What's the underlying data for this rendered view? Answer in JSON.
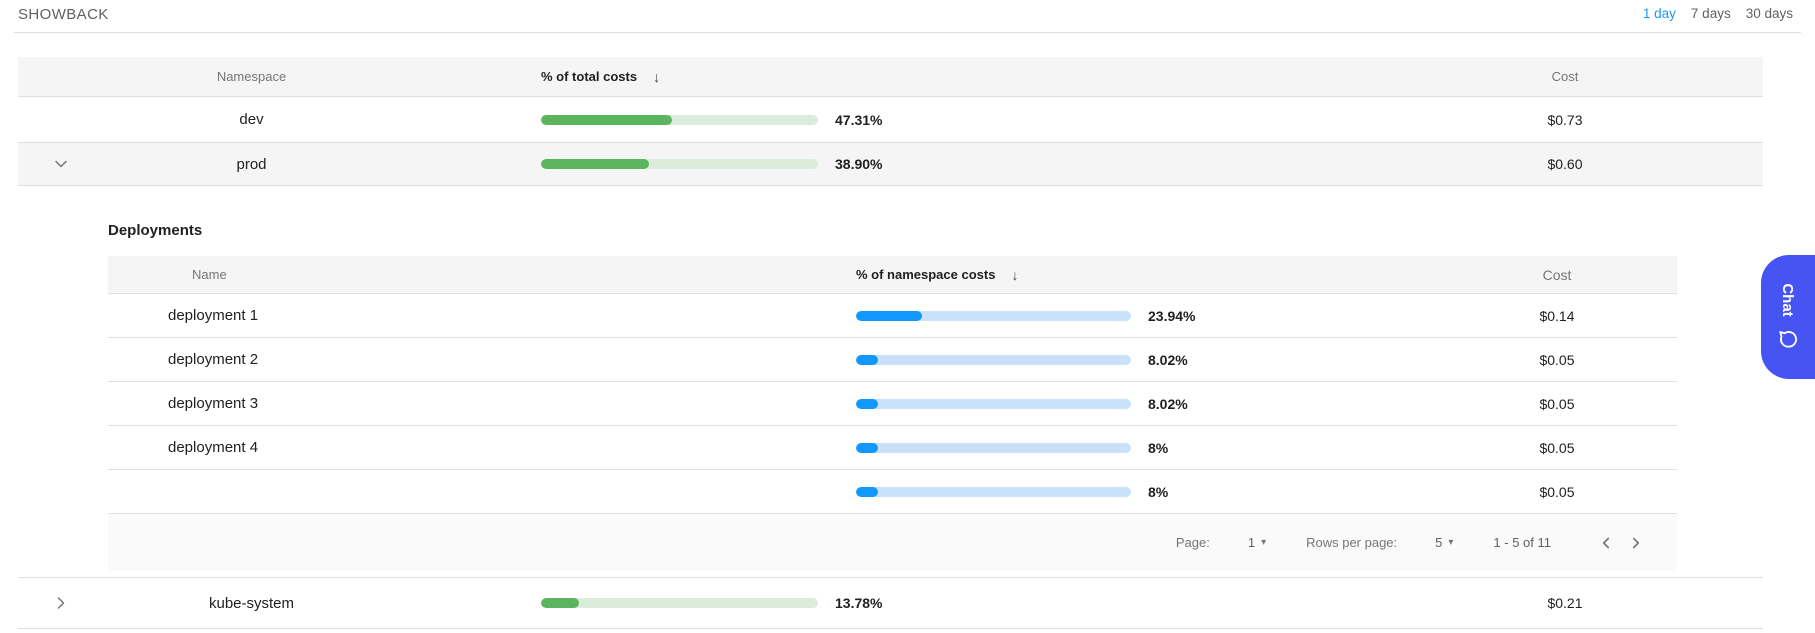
{
  "page": {
    "title": "SHOWBACK",
    "time_ranges": [
      {
        "label": "1 day",
        "selected": true
      },
      {
        "label": "7 days",
        "selected": false
      },
      {
        "label": "30 days",
        "selected": false
      }
    ]
  },
  "colors": {
    "accent_blue": "#2196f3",
    "green_bar_fill": "#5ab55e",
    "green_bar_track": "#dbecdb",
    "blue_bar_fill": "#1297fd",
    "blue_bar_track": "#c9e2f9",
    "chat_button": "#4654f3"
  },
  "main_table": {
    "headers": {
      "name": "Namespace",
      "percent": "% of total costs",
      "sort_arrow": "↓",
      "cost": "Cost"
    },
    "rows": [
      {
        "name": "dev",
        "percent": 47.31,
        "percent_label": "47.31%",
        "cost": "$0.73"
      },
      {
        "name": "prod",
        "percent": 38.9,
        "percent_label": "38.90%",
        "cost": "$0.60"
      },
      {
        "name": "kube-system",
        "percent": 13.78,
        "percent_label": "13.78%",
        "cost": "$0.21"
      }
    ]
  },
  "deployments_panel": {
    "title": "Deployments",
    "headers": {
      "name": "Name",
      "percent": "% of namespace costs",
      "sort_arrow": "↓",
      "cost": "Cost"
    },
    "rows": [
      {
        "name": "deployment 1",
        "percent": 23.94,
        "percent_label": "23.94%",
        "cost": "$0.14"
      },
      {
        "name": "deployment 2",
        "percent": 8.02,
        "percent_label": "8.02%",
        "cost": "$0.05"
      },
      {
        "name": "deployment 3",
        "percent": 8.02,
        "percent_label": "8.02%",
        "cost": "$0.05"
      },
      {
        "name": "deployment 4",
        "percent": 8,
        "percent_label": "8%",
        "cost": "$0.05"
      },
      {
        "name": "",
        "percent": 8,
        "percent_label": "8%",
        "cost": "$0.05"
      }
    ],
    "pagination": {
      "page_label": "Page:",
      "page_value": "1",
      "rows_label": "Rows per page:",
      "rows_value": "5",
      "range": "1 - 5 of 11"
    }
  },
  "chat": {
    "label": "Chat"
  }
}
